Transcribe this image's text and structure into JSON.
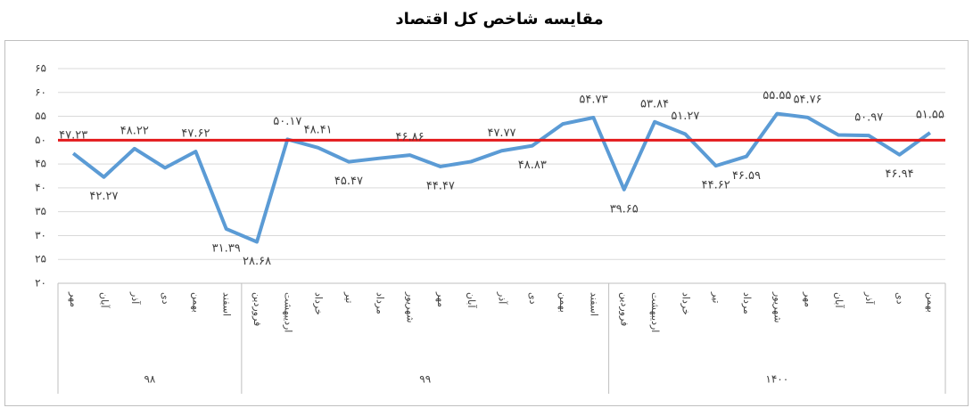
{
  "chart_data": {
    "type": "line",
    "title": "مقایسه شاخص کل اقتصاد",
    "groups": [
      {
        "label": "۹۸",
        "categories": [
          "مهر",
          "آبان",
          "آذر",
          "دی",
          "بهمن",
          "اسفند"
        ]
      },
      {
        "label": "۹۹",
        "categories": [
          "فروردین",
          "اردیبهشت",
          "خرداد",
          "تیر",
          "مرداد",
          "شهریور",
          "مهر",
          "آبان",
          "آذر",
          "دی",
          "بهمن",
          "اسفند"
        ]
      },
      {
        "label": "۱۴۰۰",
        "categories": [
          "فروردین",
          "اردیبهشت",
          "خرداد",
          "تیر",
          "مرداد",
          "شهریور",
          "مهر",
          "آبان",
          "آذر",
          "دی",
          "بهمن"
        ]
      }
    ],
    "values": [
      47.23,
      42.27,
      48.22,
      44.2,
      47.62,
      31.39,
      28.68,
      50.17,
      48.41,
      45.47,
      46.2,
      46.86,
      44.47,
      45.5,
      47.77,
      48.83,
      53.4,
      54.73,
      39.65,
      53.84,
      51.27,
      44.62,
      46.59,
      55.55,
      54.76,
      51.1,
      50.97,
      46.94,
      51.55
    ],
    "value_labels": [
      "۴۷.۲۳",
      "۴۲.۲۷",
      "۴۸.۲۲",
      null,
      "۴۷.۶۲",
      "۳۱.۳۹",
      "۲۸.۶۸",
      "۵۰.۱۷",
      "۴۸.۴۱",
      "۴۵.۴۷",
      null,
      "۴۶.۸۶",
      "۴۴.۴۷",
      null,
      "۴۷.۷۷",
      "۴۸.۸۳",
      null,
      "۵۴.۷۳",
      "۳۹.۶۵",
      "۵۳.۸۴",
      "۵۱.۲۷",
      "۴۴.۶۲",
      "۴۶.۵۹",
      "۵۵.۵۵",
      "۵۴.۷۶",
      null,
      "۵۰.۹۷",
      "۴۶.۹۴",
      "۵۱.۵۵"
    ],
    "color": "#5b9bd5",
    "reference_line": {
      "value": 50,
      "color": "#e31a1c"
    },
    "ylim": [
      20,
      65
    ],
    "yticks": [
      {
        "value": 20,
        "label": "۲۰"
      },
      {
        "value": 25,
        "label": "۲۵"
      },
      {
        "value": 30,
        "label": "۳۰"
      },
      {
        "value": 35,
        "label": "۳۵"
      },
      {
        "value": 40,
        "label": "۴۰"
      },
      {
        "value": 45,
        "label": "۴۵"
      },
      {
        "value": 50,
        "label": "۵۰"
      },
      {
        "value": 55,
        "label": "۵۵"
      },
      {
        "value": 60,
        "label": "۶۰"
      },
      {
        "value": 65,
        "label": "۶۵"
      }
    ],
    "grid": true
  }
}
